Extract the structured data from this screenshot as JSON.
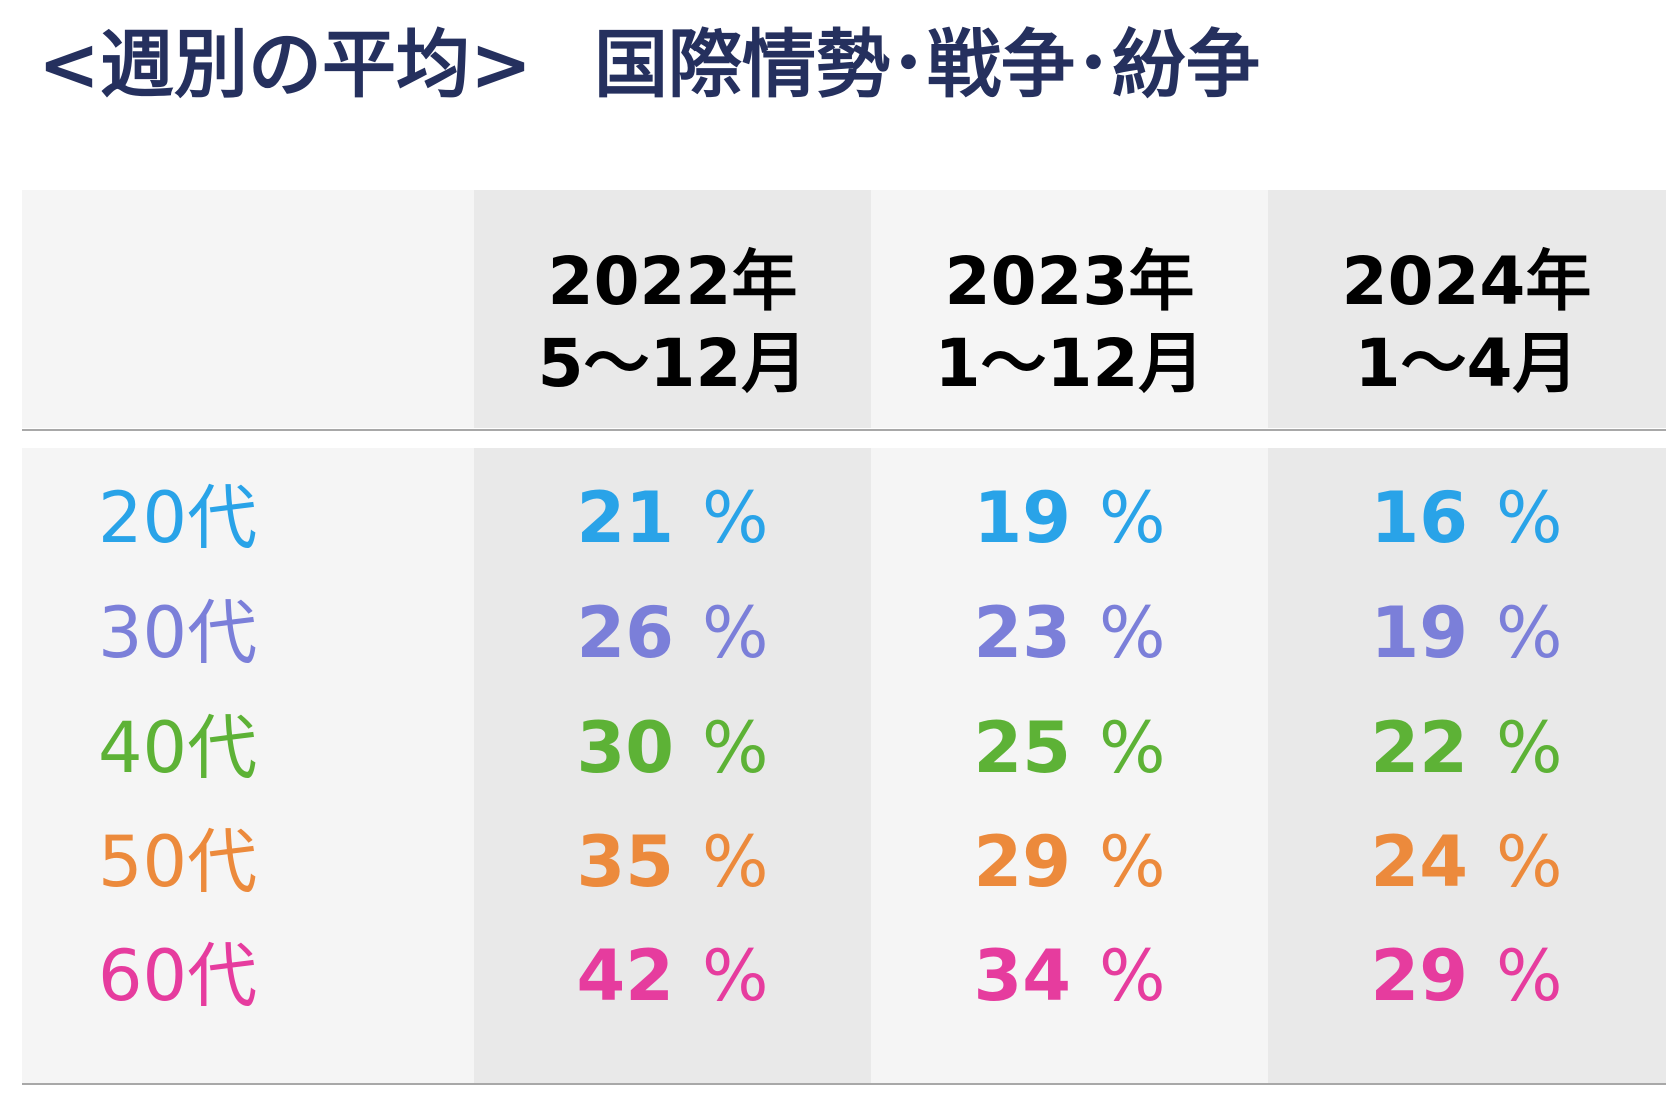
{
  "title": {
    "prefix": "<週別の平均>",
    "topic": "国際情勢･戦争･紛争"
  },
  "chart_data": {
    "type": "table",
    "unit": "%",
    "columns": [
      {
        "year": "2022年",
        "period": "5～12月"
      },
      {
        "year": "2023年",
        "period": "1～12月"
      },
      {
        "year": "2024年",
        "period": "1～4月"
      }
    ],
    "rows": [
      {
        "label": "20代",
        "color": "#29a3e8",
        "values": [
          21,
          19,
          16
        ]
      },
      {
        "label": "30代",
        "color": "#7b7fd9",
        "values": [
          26,
          23,
          19
        ]
      },
      {
        "label": "40代",
        "color": "#5db236",
        "values": [
          30,
          25,
          22
        ]
      },
      {
        "label": "50代",
        "color": "#ec8a3c",
        "values": [
          35,
          29,
          24
        ]
      },
      {
        "label": "60代",
        "color": "#e63c9e",
        "values": [
          42,
          34,
          29
        ]
      }
    ]
  }
}
